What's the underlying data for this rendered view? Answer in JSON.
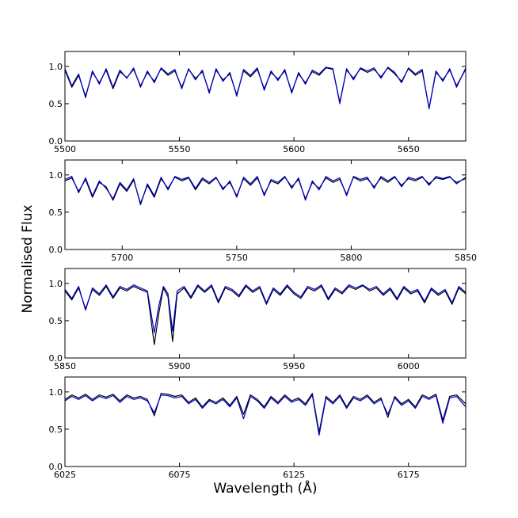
{
  "figure": {
    "ylabel": "Normalised Flux",
    "xlabel": "Wavelength (Å)"
  },
  "chart_data": [
    {
      "type": "line",
      "xlim": [
        5500,
        5675
      ],
      "ylim": [
        0.0,
        1.2
      ],
      "xticks": [
        "5500",
        "5550",
        "5600",
        "5650"
      ],
      "yticks": [
        "0.0",
        "0.5",
        "1.0"
      ],
      "series": [
        {
          "color": "#000000",
          "x": [
            5500,
            5503,
            5506,
            5509,
            5512,
            5515,
            5518,
            5521,
            5524,
            5527,
            5530,
            5533,
            5536,
            5539,
            5542,
            5545,
            5548,
            5551,
            5554,
            5557,
            5560,
            5563,
            5566,
            5569,
            5572,
            5575,
            5578,
            5581,
            5584,
            5587,
            5590,
            5593,
            5596,
            5599,
            5602,
            5605,
            5608,
            5611,
            5614,
            5617,
            5620,
            5623,
            5626,
            5629,
            5632,
            5635,
            5638,
            5641,
            5644,
            5647,
            5650,
            5653,
            5656,
            5659,
            5662,
            5665,
            5668,
            5671,
            5675
          ],
          "y": [
            0.95,
            0.72,
            0.88,
            0.6,
            0.92,
            0.78,
            0.95,
            0.7,
            0.93,
            0.85,
            0.96,
            0.74,
            0.92,
            0.8,
            0.97,
            0.88,
            0.94,
            0.72,
            0.96,
            0.84,
            0.93,
            0.66,
            0.95,
            0.82,
            0.9,
            0.62,
            0.94,
            0.86,
            0.96,
            0.7,
            0.92,
            0.83,
            0.94,
            0.66,
            0.9,
            0.78,
            0.93,
            0.88,
            0.98,
            0.96,
            0.52,
            0.95,
            0.84,
            0.97,
            0.92,
            0.96,
            0.86,
            0.98,
            0.9,
            0.8,
            0.97,
            0.88,
            0.94,
            0.44,
            0.92,
            0.82,
            0.95,
            0.74,
            0.96
          ]
        },
        {
          "color": "#0000cc",
          "x": [
            5500,
            5503,
            5506,
            5509,
            5512,
            5515,
            5518,
            5521,
            5524,
            5527,
            5530,
            5533,
            5536,
            5539,
            5542,
            5545,
            5548,
            5551,
            5554,
            5557,
            5560,
            5563,
            5566,
            5569,
            5572,
            5575,
            5578,
            5581,
            5584,
            5587,
            5590,
            5593,
            5596,
            5599,
            5602,
            5605,
            5608,
            5611,
            5614,
            5617,
            5620,
            5623,
            5626,
            5629,
            5632,
            5635,
            5638,
            5641,
            5644,
            5647,
            5650,
            5653,
            5656,
            5659,
            5662,
            5665,
            5668,
            5671,
            5675
          ],
          "y": [
            0.97,
            0.74,
            0.9,
            0.58,
            0.94,
            0.76,
            0.97,
            0.72,
            0.95,
            0.84,
            0.98,
            0.72,
            0.94,
            0.78,
            0.98,
            0.9,
            0.96,
            0.7,
            0.97,
            0.82,
            0.95,
            0.64,
            0.97,
            0.8,
            0.92,
            0.6,
            0.96,
            0.88,
            0.98,
            0.68,
            0.94,
            0.81,
            0.96,
            0.64,
            0.92,
            0.76,
            0.95,
            0.9,
            0.99,
            0.97,
            0.5,
            0.97,
            0.82,
            0.98,
            0.94,
            0.98,
            0.84,
            0.99,
            0.92,
            0.78,
            0.98,
            0.9,
            0.96,
            0.43,
            0.94,
            0.8,
            0.97,
            0.72,
            0.98
          ]
        }
      ]
    },
    {
      "type": "line",
      "xlim": [
        5675,
        5850
      ],
      "ylim": [
        0.0,
        1.2
      ],
      "xticks": [
        "5700",
        "5750",
        "5800",
        "5850"
      ],
      "yticks": [
        "0.0",
        "0.5",
        "1.0"
      ],
      "series": [
        {
          "color": "#000000",
          "x": [
            5675,
            5678,
            5681,
            5684,
            5687,
            5690,
            5693,
            5696,
            5699,
            5702,
            5705,
            5708,
            5711,
            5714,
            5717,
            5720,
            5723,
            5726,
            5729,
            5732,
            5735,
            5738,
            5741,
            5744,
            5747,
            5750,
            5753,
            5756,
            5759,
            5762,
            5765,
            5768,
            5771,
            5774,
            5777,
            5780,
            5783,
            5786,
            5789,
            5792,
            5795,
            5798,
            5801,
            5804,
            5807,
            5810,
            5813,
            5816,
            5819,
            5822,
            5825,
            5828,
            5831,
            5834,
            5837,
            5840,
            5843,
            5846,
            5850
          ],
          "y": [
            0.92,
            0.96,
            0.78,
            0.94,
            0.7,
            0.9,
            0.84,
            0.66,
            0.88,
            0.78,
            0.93,
            0.62,
            0.86,
            0.7,
            0.95,
            0.82,
            0.97,
            0.92,
            0.96,
            0.8,
            0.94,
            0.88,
            0.96,
            0.82,
            0.9,
            0.72,
            0.95,
            0.86,
            0.96,
            0.74,
            0.92,
            0.88,
            0.97,
            0.84,
            0.94,
            0.68,
            0.9,
            0.82,
            0.96,
            0.9,
            0.94,
            0.74,
            0.97,
            0.92,
            0.95,
            0.84,
            0.96,
            0.9,
            0.97,
            0.86,
            0.95,
            0.92,
            0.97,
            0.88,
            0.96,
            0.94,
            0.97,
            0.9,
            0.95
          ]
        },
        {
          "color": "#0000cc",
          "x": [
            5675,
            5678,
            5681,
            5684,
            5687,
            5690,
            5693,
            5696,
            5699,
            5702,
            5705,
            5708,
            5711,
            5714,
            5717,
            5720,
            5723,
            5726,
            5729,
            5732,
            5735,
            5738,
            5741,
            5744,
            5747,
            5750,
            5753,
            5756,
            5759,
            5762,
            5765,
            5768,
            5771,
            5774,
            5777,
            5780,
            5783,
            5786,
            5789,
            5792,
            5795,
            5798,
            5801,
            5804,
            5807,
            5810,
            5813,
            5816,
            5819,
            5822,
            5825,
            5828,
            5831,
            5834,
            5837,
            5840,
            5843,
            5846,
            5850
          ],
          "y": [
            0.94,
            0.98,
            0.76,
            0.96,
            0.72,
            0.92,
            0.82,
            0.68,
            0.9,
            0.8,
            0.95,
            0.6,
            0.88,
            0.72,
            0.97,
            0.8,
            0.98,
            0.94,
            0.97,
            0.82,
            0.96,
            0.9,
            0.97,
            0.8,
            0.92,
            0.7,
            0.97,
            0.88,
            0.98,
            0.72,
            0.94,
            0.9,
            0.98,
            0.82,
            0.96,
            0.66,
            0.92,
            0.8,
            0.98,
            0.92,
            0.96,
            0.72,
            0.98,
            0.94,
            0.97,
            0.82,
            0.98,
            0.92,
            0.98,
            0.84,
            0.97,
            0.94,
            0.98,
            0.86,
            0.98,
            0.95,
            0.98,
            0.88,
            0.97
          ]
        }
      ]
    },
    {
      "type": "line",
      "xlim": [
        5850,
        6025
      ],
      "ylim": [
        0.0,
        1.2
      ],
      "xticks": [
        "5850",
        "5900",
        "5950",
        "6000"
      ],
      "yticks": [
        "0.0",
        "0.5",
        "1.0"
      ],
      "series": [
        {
          "color": "#000000",
          "x": [
            5850,
            5853,
            5856,
            5859,
            5862,
            5865,
            5868,
            5871,
            5874,
            5877,
            5880,
            5883,
            5886,
            5889,
            5891,
            5893,
            5895,
            5897,
            5899,
            5902,
            5905,
            5908,
            5911,
            5914,
            5917,
            5920,
            5923,
            5926,
            5929,
            5932,
            5935,
            5938,
            5941,
            5944,
            5947,
            5950,
            5953,
            5956,
            5959,
            5962,
            5965,
            5968,
            5971,
            5974,
            5977,
            5980,
            5983,
            5986,
            5989,
            5992,
            5995,
            5998,
            6001,
            6004,
            6007,
            6010,
            6013,
            6016,
            6019,
            6022,
            6025
          ],
          "y": [
            0.9,
            0.78,
            0.94,
            0.66,
            0.92,
            0.84,
            0.96,
            0.8,
            0.94,
            0.9,
            0.96,
            0.92,
            0.88,
            0.18,
            0.6,
            0.94,
            0.82,
            0.22,
            0.86,
            0.94,
            0.8,
            0.96,
            0.88,
            0.96,
            0.74,
            0.94,
            0.9,
            0.82,
            0.96,
            0.88,
            0.94,
            0.72,
            0.92,
            0.84,
            0.96,
            0.86,
            0.8,
            0.94,
            0.9,
            0.96,
            0.78,
            0.92,
            0.86,
            0.96,
            0.92,
            0.97,
            0.9,
            0.94,
            0.84,
            0.92,
            0.78,
            0.94,
            0.86,
            0.9,
            0.74,
            0.92,
            0.84,
            0.9,
            0.72,
            0.94,
            0.86
          ]
        },
        {
          "color": "#0000cc",
          "x": [
            5850,
            5853,
            5856,
            5859,
            5862,
            5865,
            5868,
            5871,
            5874,
            5877,
            5880,
            5883,
            5886,
            5889,
            5891,
            5893,
            5895,
            5897,
            5899,
            5902,
            5905,
            5908,
            5911,
            5914,
            5917,
            5920,
            5923,
            5926,
            5929,
            5932,
            5935,
            5938,
            5941,
            5944,
            5947,
            5950,
            5953,
            5956,
            5959,
            5962,
            5965,
            5968,
            5971,
            5974,
            5977,
            5980,
            5983,
            5986,
            5989,
            5992,
            5995,
            5998,
            6001,
            6004,
            6007,
            6010,
            6013,
            6016,
            6019,
            6022,
            6025
          ],
          "y": [
            0.92,
            0.8,
            0.96,
            0.64,
            0.94,
            0.86,
            0.98,
            0.82,
            0.96,
            0.92,
            0.98,
            0.94,
            0.9,
            0.34,
            0.7,
            0.96,
            0.86,
            0.36,
            0.9,
            0.96,
            0.82,
            0.98,
            0.9,
            0.98,
            0.76,
            0.96,
            0.92,
            0.84,
            0.98,
            0.9,
            0.96,
            0.74,
            0.94,
            0.86,
            0.98,
            0.88,
            0.82,
            0.96,
            0.92,
            0.98,
            0.8,
            0.94,
            0.88,
            0.98,
            0.94,
            0.98,
            0.92,
            0.96,
            0.86,
            0.94,
            0.8,
            0.96,
            0.88,
            0.92,
            0.76,
            0.94,
            0.86,
            0.92,
            0.74,
            0.96,
            0.88
          ]
        }
      ]
    },
    {
      "type": "line",
      "xlim": [
        6025,
        6200
      ],
      "ylim": [
        0.0,
        1.2
      ],
      "xticks": [
        "6025",
        "6075",
        "6125",
        "6175"
      ],
      "yticks": [
        "0.0",
        "0.5",
        "1.0"
      ],
      "series": [
        {
          "color": "#000000",
          "x": [
            6025,
            6028,
            6031,
            6034,
            6037,
            6040,
            6043,
            6046,
            6049,
            6052,
            6055,
            6058,
            6061,
            6064,
            6067,
            6070,
            6073,
            6076,
            6079,
            6082,
            6085,
            6088,
            6091,
            6094,
            6097,
            6100,
            6103,
            6106,
            6109,
            6112,
            6115,
            6118,
            6121,
            6124,
            6127,
            6130,
            6133,
            6136,
            6139,
            6142,
            6145,
            6148,
            6151,
            6154,
            6157,
            6160,
            6163,
            6166,
            6169,
            6172,
            6175,
            6178,
            6181,
            6184,
            6187,
            6190,
            6193,
            6196,
            6200
          ],
          "y": [
            0.9,
            0.96,
            0.92,
            0.97,
            0.9,
            0.96,
            0.93,
            0.97,
            0.88,
            0.96,
            0.92,
            0.94,
            0.9,
            0.68,
            0.98,
            0.97,
            0.94,
            0.96,
            0.86,
            0.92,
            0.8,
            0.9,
            0.86,
            0.92,
            0.82,
            0.94,
            0.7,
            0.96,
            0.9,
            0.8,
            0.94,
            0.86,
            0.96,
            0.88,
            0.92,
            0.84,
            0.98,
            0.46,
            0.94,
            0.86,
            0.96,
            0.8,
            0.94,
            0.9,
            0.96,
            0.86,
            0.92,
            0.66,
            0.94,
            0.84,
            0.9,
            0.8,
            0.96,
            0.92,
            0.97,
            0.62,
            0.94,
            0.96,
            0.84
          ]
        },
        {
          "color": "#0000cc",
          "x": [
            6025,
            6028,
            6031,
            6034,
            6037,
            6040,
            6043,
            6046,
            6049,
            6052,
            6055,
            6058,
            6061,
            6064,
            6067,
            6070,
            6073,
            6076,
            6079,
            6082,
            6085,
            6088,
            6091,
            6094,
            6097,
            6100,
            6103,
            6106,
            6109,
            6112,
            6115,
            6118,
            6121,
            6124,
            6127,
            6130,
            6133,
            6136,
            6139,
            6142,
            6145,
            6148,
            6151,
            6154,
            6157,
            6160,
            6163,
            6166,
            6169,
            6172,
            6175,
            6178,
            6181,
            6184,
            6187,
            6190,
            6193,
            6196,
            6200
          ],
          "y": [
            0.88,
            0.94,
            0.9,
            0.95,
            0.88,
            0.94,
            0.91,
            0.95,
            0.86,
            0.94,
            0.9,
            0.92,
            0.88,
            0.72,
            0.96,
            0.95,
            0.92,
            0.94,
            0.84,
            0.9,
            0.78,
            0.88,
            0.84,
            0.9,
            0.8,
            0.92,
            0.64,
            0.94,
            0.88,
            0.78,
            0.92,
            0.84,
            0.94,
            0.86,
            0.9,
            0.82,
            0.96,
            0.42,
            0.92,
            0.84,
            0.94,
            0.78,
            0.92,
            0.88,
            0.94,
            0.84,
            0.9,
            0.7,
            0.92,
            0.82,
            0.88,
            0.78,
            0.94,
            0.9,
            0.95,
            0.58,
            0.92,
            0.94,
            0.8
          ]
        }
      ]
    }
  ]
}
